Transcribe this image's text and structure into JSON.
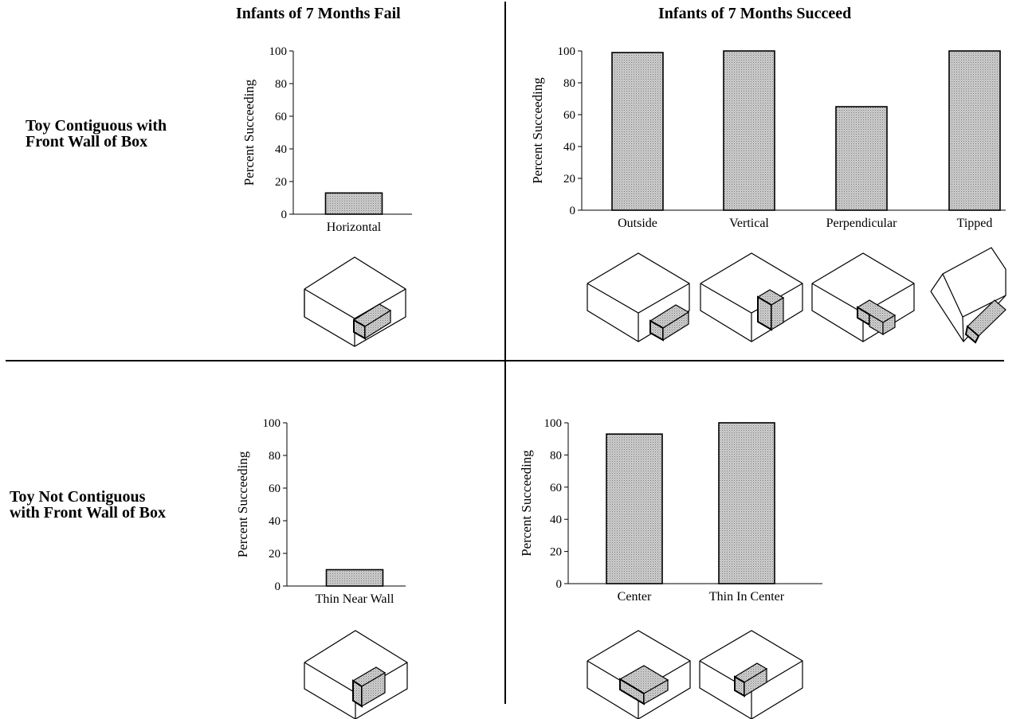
{
  "column_titles": {
    "left": "Infants of 7 Months Fail",
    "right": "Infants of 7 Months Succeed"
  },
  "row_labels": {
    "top_line1": "Toy Contiguous with",
    "top_line2": "Front Wall of Box",
    "bottom_line1": "Toy Not Contiguous",
    "bottom_line2": "with Front Wall of Box"
  },
  "colors": {
    "bar_fill": "#bdbdbd",
    "stroke": "#000000",
    "background": "#ffffff"
  },
  "chart_data": [
    {
      "id": "top-left",
      "type": "bar",
      "categories": [
        "Horizontal"
      ],
      "values": [
        13
      ],
      "ylabel": "Percent Succeeding",
      "ylim": [
        0,
        100
      ],
      "yticks": [
        0,
        20,
        40,
        60,
        80,
        100
      ]
    },
    {
      "id": "top-right",
      "type": "bar",
      "categories": [
        "Outside",
        "Vertical",
        "Perpendicular",
        "Tipped"
      ],
      "values": [
        99,
        100,
        65,
        100
      ],
      "ylabel": "Percent Succeeding",
      "ylim": [
        0,
        100
      ],
      "yticks": [
        0,
        20,
        40,
        60,
        80,
        100
      ]
    },
    {
      "id": "bottom-left",
      "type": "bar",
      "categories": [
        "Thin Near Wall"
      ],
      "values": [
        10
      ],
      "ylabel": "Percent Succeeding",
      "ylim": [
        0,
        100
      ],
      "yticks": [
        0,
        20,
        40,
        60,
        80,
        100
      ]
    },
    {
      "id": "bottom-right",
      "type": "bar",
      "categories": [
        "Center",
        "Thin In Center"
      ],
      "values": [
        93,
        100
      ],
      "ylabel": "Percent Succeeding",
      "ylim": [
        0,
        100
      ],
      "yticks": [
        0,
        20,
        40,
        60,
        80,
        100
      ]
    }
  ]
}
